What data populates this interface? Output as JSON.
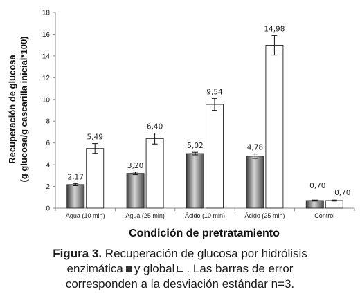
{
  "chart_data": {
    "type": "bar",
    "categories": [
      "Agua (10 min)",
      "Agua (25 min)",
      "Ácido (10 min)",
      "Ácido (25 min)",
      "Control"
    ],
    "series": [
      {
        "values": [
          2.17,
          3.2,
          5.02,
          4.78,
          0.7
        ],
        "errors": [
          0.1,
          0.12,
          0.12,
          0.2,
          0.05
        ],
        "labels": [
          "2,17",
          "3,20",
          "5,02",
          "4,78",
          "0,70"
        ],
        "style": "gray-gradient"
      },
      {
        "values": [
          5.49,
          6.4,
          9.54,
          14.98,
          0.7
        ],
        "errors": [
          0.45,
          0.5,
          0.55,
          0.9,
          0.05
        ],
        "labels": [
          "5,49",
          "6,40",
          "9,54",
          "14,98",
          "0,70"
        ],
        "style": "white"
      }
    ],
    "ylim": [
      0,
      18
    ],
    "yticks": [
      0,
      2,
      4,
      6,
      8,
      10,
      12,
      14,
      16,
      18
    ],
    "ylabel_line1": "Recuperación de glucosa",
    "ylabel_line2": "(g glucosa/g cascarilla inicial*100)",
    "xlabel": "Condición de pretratamiento",
    "grid": false,
    "colors": {
      "gray_dark": "#4a4a4a",
      "gray_light": "#cfcfcf",
      "white_bar": "#ffffff",
      "axis": "#888888"
    }
  },
  "caption": {
    "lead": "Figura 3.",
    "line1": " Recuperación de glucosa por hidrólisis",
    "line2a": "enzimática",
    "line2b": "y global",
    "line2c": ". Las barras de error",
    "line3": "corresponden a la desviación estándar n=3."
  }
}
